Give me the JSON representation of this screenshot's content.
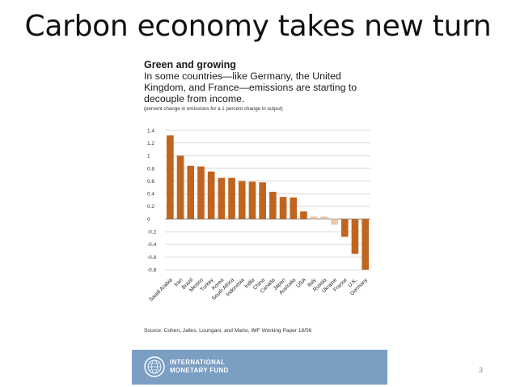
{
  "slide": {
    "title": "Carbon economy takes new turn",
    "page_number": "3"
  },
  "figure": {
    "heading": "Green and growing",
    "subtitle": "In some countries—like Germany, the United Kingdom, and France—emissions are starting to decouple from income.",
    "note": "(percent change in emissions for a 1 percent change in output)",
    "source": "Source: Cohen, Jalles, Loungani, and Marto, IMF Working Paper 18/56"
  },
  "footer": {
    "org_line1": "INTERNATIONAL",
    "org_line2": "MONETARY FUND",
    "band_color": "#7b9ec3"
  },
  "chart_data": {
    "type": "bar",
    "title": "Green and growing",
    "xlabel": "",
    "ylabel": "",
    "ylim": [
      -0.9,
      1.4
    ],
    "yticks": [
      1.4,
      1.2,
      1,
      0.8,
      0.6,
      0.4,
      0.2,
      0,
      -0.2,
      -0.4,
      -0.6,
      -0.8
    ],
    "ytick_labels": [
      "1.4",
      "1.2",
      "1",
      "0.8",
      "0.6",
      "0.4",
      "0.2",
      "0",
      "-0.2",
      "-0.4",
      "-0.6",
      "-0.8"
    ],
    "grid": true,
    "categories": [
      "Saudi Arabia",
      "Iran",
      "Brazil",
      "Mexico",
      "Turkey",
      "Korea",
      "South Africa",
      "Indonesia",
      "India",
      "China",
      "Canada",
      "Japan",
      "Australia",
      "USA",
      "Italy",
      "Russia",
      "Ukraine",
      "France",
      "U.K.",
      "Germany"
    ],
    "values": [
      1.32,
      1.0,
      0.84,
      0.83,
      0.75,
      0.65,
      0.65,
      0.6,
      0.59,
      0.58,
      0.43,
      0.35,
      0.34,
      0.12,
      0.04,
      0.04,
      -0.09,
      -0.28,
      -0.55,
      -0.8
    ],
    "colors": {
      "primary": "#c0651f",
      "muted": "#f0c6a4",
      "gridline": "#b0b0b0",
      "zeroline": "#666666"
    },
    "muted_categories": [
      "Italy",
      "Russia",
      "Ukraine"
    ]
  }
}
